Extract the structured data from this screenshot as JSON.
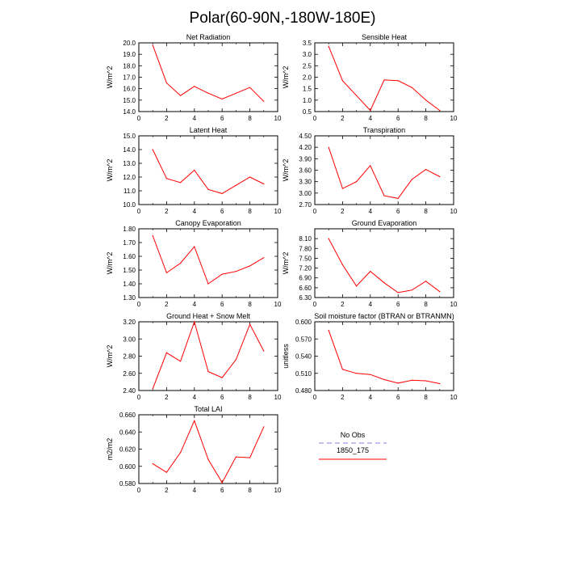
{
  "figure_title": "Polar(60-90N,-180W-180E)",
  "colors": {
    "line": "#ff0000",
    "obs": "#9a9aea"
  },
  "legend": {
    "obs_label": "No Obs",
    "model_label": "1850_175"
  },
  "chart_data": [
    {
      "type": "line",
      "title": "Net Radiation",
      "ylabel": "W/m^2",
      "xlim": [
        0,
        10
      ],
      "ylim": [
        14.0,
        20.0
      ],
      "xticks": [
        "0",
        "2",
        "4",
        "6",
        "8",
        "10"
      ],
      "yticks": [
        "14.0",
        "15.0",
        "16.0",
        "17.0",
        "18.0",
        "19.0",
        "20.0"
      ],
      "series": [
        {
          "name": "1850_175",
          "x": [
            1,
            2,
            3,
            4,
            5,
            6,
            7,
            8,
            9
          ],
          "values": [
            19.8,
            16.5,
            15.4,
            16.2,
            15.6,
            15.1,
            15.6,
            16.1,
            14.9
          ]
        }
      ]
    },
    {
      "type": "line",
      "title": "Sensible Heat",
      "ylabel": "W/m^2",
      "xlim": [
        0,
        10
      ],
      "ylim": [
        0.5,
        3.5
      ],
      "xticks": [
        "0",
        "2",
        "4",
        "6",
        "8",
        "10"
      ],
      "yticks": [
        "0.5",
        "1.0",
        "1.5",
        "2.0",
        "2.5",
        "3.0",
        "3.5"
      ],
      "series": [
        {
          "name": "1850_175",
          "x": [
            1,
            2,
            3,
            4,
            5,
            6,
            7,
            8,
            9
          ],
          "values": [
            3.35,
            1.85,
            1.2,
            0.55,
            1.88,
            1.85,
            1.55,
            1.0,
            0.55
          ]
        }
      ]
    },
    {
      "type": "line",
      "title": "Latent Heat",
      "ylabel": "W/m^2",
      "xlim": [
        0,
        10
      ],
      "ylim": [
        10.0,
        15.0
      ],
      "xticks": [
        "0",
        "2",
        "4",
        "6",
        "8",
        "10"
      ],
      "yticks": [
        "10.0",
        "11.0",
        "12.0",
        "13.0",
        "14.0",
        "15.0"
      ],
      "series": [
        {
          "name": "1850_175",
          "x": [
            1,
            2,
            3,
            4,
            5,
            6,
            7,
            8,
            9
          ],
          "values": [
            14.0,
            11.9,
            11.6,
            12.5,
            11.1,
            10.8,
            11.4,
            12.0,
            11.5
          ]
        }
      ]
    },
    {
      "type": "line",
      "title": "Transpiration",
      "ylabel": "W/m^2",
      "xlim": [
        0,
        10
      ],
      "ylim": [
        2.7,
        4.5
      ],
      "xticks": [
        "0",
        "2",
        "4",
        "6",
        "8",
        "10"
      ],
      "yticks": [
        "2.70",
        "3.00",
        "3.30",
        "3.60",
        "3.90",
        "4.20",
        "4.50"
      ],
      "series": [
        {
          "name": "1850_175",
          "x": [
            1,
            2,
            3,
            4,
            5,
            6,
            7,
            8,
            9
          ],
          "values": [
            4.2,
            3.12,
            3.3,
            3.72,
            2.93,
            2.86,
            3.36,
            3.62,
            3.43
          ]
        }
      ]
    },
    {
      "type": "line",
      "title": "Canopy Evaporation",
      "ylabel": "W/m^2",
      "xlim": [
        0,
        10
      ],
      "ylim": [
        1.3,
        1.8
      ],
      "xticks": [
        "0",
        "2",
        "4",
        "6",
        "8",
        "10"
      ],
      "yticks": [
        "1.30",
        "1.40",
        "1.50",
        "1.60",
        "1.70",
        "1.80"
      ],
      "series": [
        {
          "name": "1850_175",
          "x": [
            1,
            2,
            3,
            4,
            5,
            6,
            7,
            8,
            9
          ],
          "values": [
            1.75,
            1.48,
            1.55,
            1.67,
            1.4,
            1.47,
            1.49,
            1.53,
            1.59
          ]
        }
      ]
    },
    {
      "type": "line",
      "title": "Ground Evaporation",
      "ylabel": "W/m^2",
      "xlim": [
        0,
        10
      ],
      "ylim": [
        6.3,
        8.4
      ],
      "xticks": [
        "0",
        "2",
        "4",
        "6",
        "8",
        "10"
      ],
      "yticks": [
        "6.30",
        "6.60",
        "6.90",
        "7.20",
        "7.50",
        "7.80",
        "8.10"
      ],
      "series": [
        {
          "name": "1850_175",
          "x": [
            1,
            2,
            3,
            4,
            5,
            6,
            7,
            8,
            9
          ],
          "values": [
            8.1,
            7.3,
            6.65,
            7.1,
            6.75,
            6.45,
            6.53,
            6.8,
            6.48
          ]
        }
      ]
    },
    {
      "type": "line",
      "title": "Ground Heat + Snow Melt",
      "ylabel": "W/m^2",
      "xlim": [
        0,
        10
      ],
      "ylim": [
        2.4,
        3.2
      ],
      "xticks": [
        "0",
        "2",
        "4",
        "6",
        "8",
        "10"
      ],
      "yticks": [
        "2.40",
        "2.60",
        "2.80",
        "3.00",
        "3.20"
      ],
      "series": [
        {
          "name": "1850_175",
          "x": [
            1,
            2,
            3,
            4,
            5,
            6,
            7,
            8,
            9
          ],
          "values": [
            2.42,
            2.84,
            2.74,
            3.2,
            2.62,
            2.55,
            2.76,
            3.17,
            2.86
          ]
        }
      ]
    },
    {
      "type": "line",
      "title": "Soil moisture factor (BTRAN or BTRANMN)",
      "ylabel": "unitless",
      "xlim": [
        0,
        10
      ],
      "ylim": [
        0.48,
        0.6
      ],
      "xticks": [
        "0",
        "2",
        "4",
        "6",
        "8",
        "10"
      ],
      "yticks": [
        "0.480",
        "0.510",
        "0.540",
        "0.570",
        "0.600"
      ],
      "series": [
        {
          "name": "1850_175",
          "x": [
            1,
            2,
            3,
            4,
            5,
            6,
            7,
            8,
            9
          ],
          "values": [
            0.585,
            0.517,
            0.51,
            0.508,
            0.499,
            0.493,
            0.498,
            0.497,
            0.492
          ]
        }
      ]
    },
    {
      "type": "line",
      "title": "Total LAI",
      "ylabel": "m2/m2",
      "xlim": [
        0,
        10
      ],
      "ylim": [
        0.58,
        0.66
      ],
      "xticks": [
        "0",
        "2",
        "4",
        "6",
        "8",
        "10"
      ],
      "yticks": [
        "0.580",
        "0.600",
        "0.620",
        "0.640",
        "0.660"
      ],
      "series": [
        {
          "name": "1850_175",
          "x": [
            1,
            2,
            3,
            4,
            5,
            6,
            7,
            8,
            9
          ],
          "values": [
            0.603,
            0.593,
            0.616,
            0.653,
            0.608,
            0.581,
            0.611,
            0.61,
            0.646
          ]
        }
      ]
    }
  ]
}
